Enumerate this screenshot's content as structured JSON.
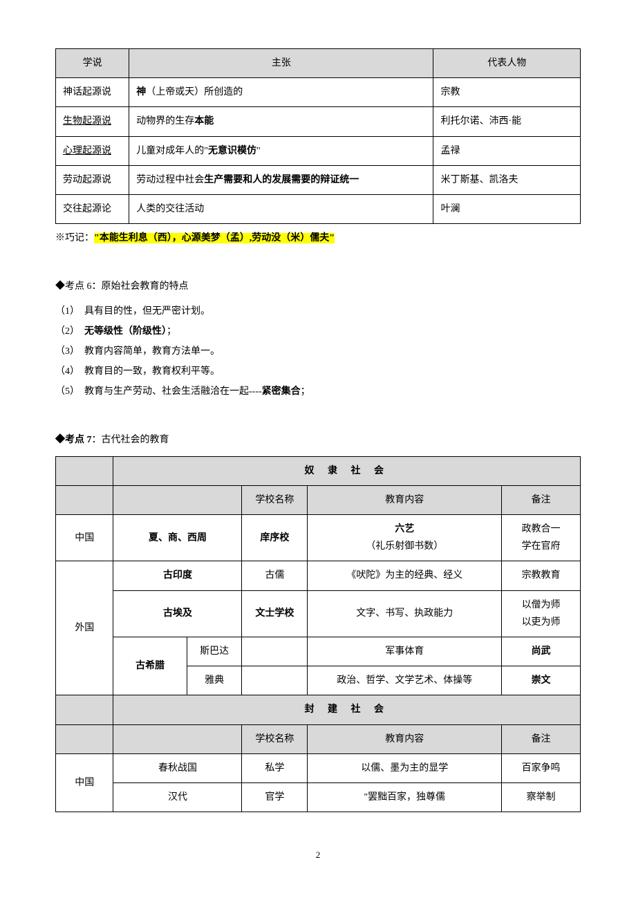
{
  "table1": {
    "headers": [
      "学说",
      "主张",
      "代表人物"
    ],
    "rows": [
      {
        "theory": "神话起源说",
        "claim_pre": "",
        "claim_bold": "神",
        "claim_post": "（上帝或天）所创造的",
        "person": "宗教"
      },
      {
        "theory": "生物起源说",
        "theory_underline": true,
        "claim_pre": "动物界的生存",
        "claim_bold": "本能",
        "claim_post": "",
        "person": "利托尔诺、沛西·能"
      },
      {
        "theory": "心理起源说",
        "theory_underline": true,
        "claim_pre": "儿童对成年人的\"",
        "claim_bold": "无意识模仿",
        "claim_post": "\"",
        "person": "孟禄"
      },
      {
        "theory": "劳动起源说",
        "claim_pre": "劳动过程中社会",
        "claim_bold": "生产需要和人的发展需要的辩证统一",
        "claim_post": "",
        "person": "米丁斯基、凯洛夫"
      },
      {
        "theory": "交往起源论",
        "claim_pre": "人类的交往活动",
        "claim_bold": "",
        "claim_post": "",
        "person": "叶澜"
      }
    ]
  },
  "mnemonic": {
    "prefix": "※巧记：",
    "text": "\"本能生利息（西），心源美梦（孟）,劳动没（米）儒夫\""
  },
  "point6": {
    "heading": "◆考点 6：原始社会教育的特点",
    "items": [
      {
        "num": "（1）",
        "text": "具有目的性，但无严密计划。"
      },
      {
        "num": "（2）",
        "bold_text": "无等级性（阶级性）",
        "text_after": "；"
      },
      {
        "num": "（3）",
        "text": "教育内容简单，教育方法单一。"
      },
      {
        "num": "（4）",
        "text": "教育目的一致，教育权利平等。"
      },
      {
        "num": "（5）",
        "text_before": "教育与生产劳动、社会生活融洽在一起----",
        "bold_text": "紧密集合",
        "text_after": "；"
      }
    ]
  },
  "point7": {
    "heading": "◆考点 7",
    "heading_after": "：古代社会的教育"
  },
  "table2": {
    "section1_title": "奴 隶 社 会",
    "sub_headers": [
      "学校名称",
      "教育内容",
      "备注"
    ],
    "china_label": "中国",
    "foreign_label": "外国",
    "row_china1": {
      "dynasty": "夏、商、西周",
      "school": "庠序校",
      "content_line1": "六艺",
      "content_line2": "（礼乐射御书数）",
      "note_line1": "政教合一",
      "note_line2": "学在官府"
    },
    "row_india": {
      "region": "古印度",
      "school": "古儒",
      "content": "《吠陀》为主的经典、经义",
      "note": "宗教教育"
    },
    "row_egypt": {
      "region": "古埃及",
      "school": "文士学校",
      "content": "文字、书写、执政能力",
      "note_line1": "以僧为师",
      "note_line2": "以吏为师"
    },
    "row_greece": {
      "region": "古希腊",
      "sparta": "斯巴达",
      "sparta_content": "军事体育",
      "sparta_note": "尚武",
      "athens": "雅典",
      "athens_content": "政治、哲学、文学艺术、体操等",
      "athens_note": "崇文"
    },
    "section2_title": "封 建 社 会",
    "row_spring": {
      "dynasty": "春秋战国",
      "school": "私学",
      "content": "以儒、墨为主的显学",
      "note": "百家争鸣"
    },
    "row_han": {
      "dynasty": "汉代",
      "school": "官学",
      "content": "\"罢黜百家，独尊儒",
      "note": "察举制"
    }
  },
  "page_number": "2"
}
